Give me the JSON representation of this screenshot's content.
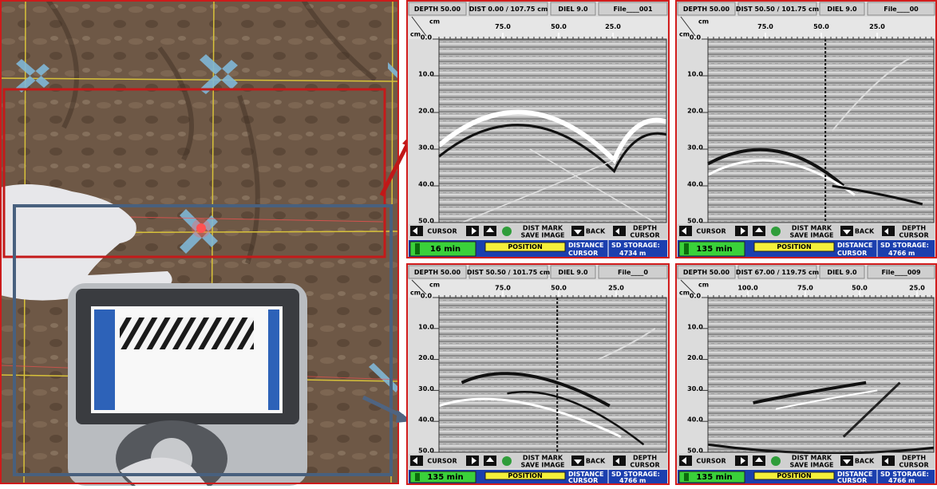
{
  "panels": [
    {
      "header": [
        "DEPTH 50.00",
        "DIST 0.00 / 107.75 cm",
        "DIEL 9.0",
        "File____001"
      ],
      "unit_top": "cm",
      "unit_left": "cm",
      "x_ticks": [
        "75.0",
        "50.0",
        "25.0"
      ],
      "depth_ticks": [
        "0.0",
        "10.0",
        "20.0",
        "30.0",
        "40.0",
        "50.0"
      ],
      "buttons": [
        "CURSOR",
        "DIST MARK",
        "SAVE IMAGE",
        "BACK",
        "DEPTH",
        "CURSOR"
      ],
      "status": {
        "time": "16 min",
        "position": "POSITION",
        "distance": "DISTANCE",
        "cursor": "CURSOR",
        "storage_label": "SD STORAGE:",
        "storage": "4734 m"
      }
    },
    {
      "header": [
        "DEPTH 50.00",
        "DIST 50.50 / 101.75 cm",
        "DIEL 9.0",
        "File____00"
      ],
      "unit_top": "cm",
      "unit_left": "cm",
      "x_ticks": [
        "75.0",
        "50.0",
        "25.0"
      ],
      "depth_ticks": [
        "0.0",
        "10.0",
        "20.0",
        "30.0",
        "40.0",
        "50.0"
      ],
      "buttons": [
        "CURSOR",
        "DIST MARK",
        "SAVE IMAGE",
        "BACK",
        "DEPTH",
        "CURSOR"
      ],
      "status": {
        "time": "135 min",
        "position": "POSITION",
        "distance": "DISTANCE",
        "cursor": "CURSOR",
        "storage_label": "SD STORAGE:",
        "storage": "4766 m"
      }
    },
    {
      "header": [
        "DEPTH 50.00",
        "DIST 50.50 / 101.75 cm",
        "DIEL 9.0",
        "File____0"
      ],
      "unit_top": "cm",
      "unit_left": "cm",
      "x_ticks": [
        "75.0",
        "50.0",
        "25.0"
      ],
      "depth_ticks": [
        "0.0",
        "10.0",
        "20.0",
        "30.0",
        "40.0",
        "50.0"
      ],
      "buttons": [
        "CURSOR",
        "DIST MARK",
        "SAVE IMAGE",
        "BACK",
        "DEPTH",
        "CURSOR"
      ],
      "status": {
        "time": "135 min",
        "position": "POSITION",
        "distance": "DISTANCE",
        "cursor": "CURSOR",
        "storage_label": "SD STORAGE:",
        "storage": "4766 m"
      }
    },
    {
      "header": [
        "DEPTH 50.00",
        "DIST 67.00 / 119.75 cm",
        "DIEL 9.0",
        "File____009"
      ],
      "unit_top": "cm",
      "unit_left": "cm",
      "x_ticks": [
        "100.0",
        "75.0",
        "50.0",
        "25.0"
      ],
      "depth_ticks": [
        "0.0",
        "10.0",
        "20.0",
        "30.0",
        "40.0",
        "50.0"
      ],
      "buttons": [
        "CURSOR",
        "DIST MARK",
        "SAVE IMAGE",
        "BACK",
        "DEPTH",
        "CURSOR"
      ],
      "status": {
        "time": "135 min",
        "position": "POSITION",
        "distance": "DISTANCE",
        "cursor": "CURSOR",
        "storage_label": "SD STORAGE:",
        "storage": "4766 m"
      }
    }
  ]
}
